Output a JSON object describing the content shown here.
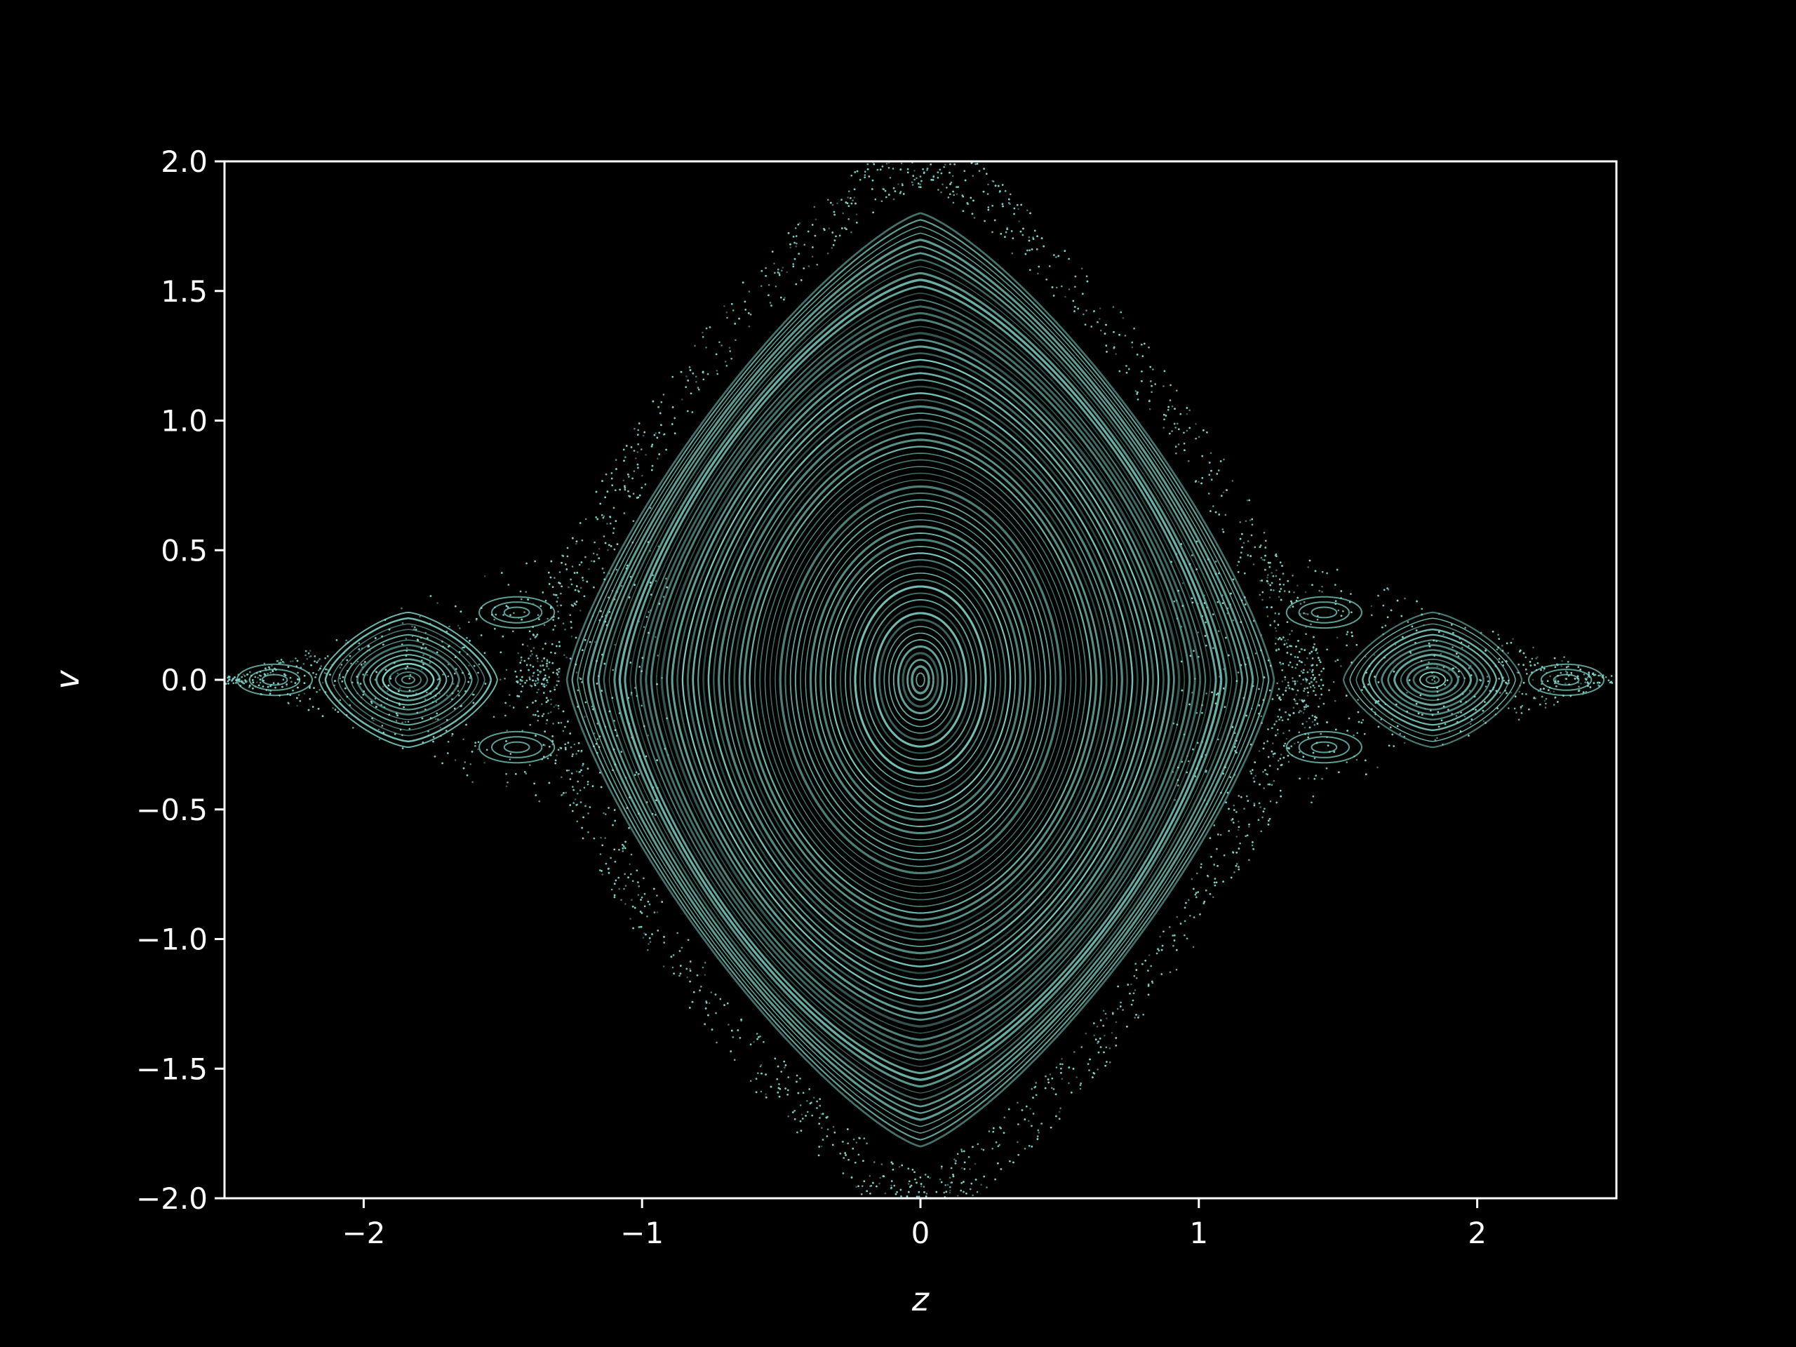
{
  "chart_data": {
    "type": "scatter",
    "title": "",
    "xlabel": "z",
    "ylabel": "v",
    "xlim": [
      -2.5,
      2.5
    ],
    "ylim": [
      -2.0,
      2.0
    ],
    "grid": false,
    "x_ticks": [
      -2,
      -1,
      0,
      1,
      2
    ],
    "y_ticks": [
      2.0,
      1.5,
      1.0,
      0.5,
      0.0,
      -0.5,
      -1.0,
      -1.5,
      -2.0
    ],
    "x_tick_labels": [
      "−2",
      "−1",
      "0",
      "1",
      "2"
    ],
    "y_tick_labels": [
      "2.0",
      "1.5",
      "1.0",
      "0.5",
      "0.0",
      "−0.5",
      "−1.0",
      "−1.5",
      "−2.0"
    ],
    "point_color": "#7fd3c7",
    "background_color": "#000000",
    "series": [
      {
        "description_values": {
          "central_island": {
            "center": [
              0,
              0
            ],
            "z_halfwidth": 1.27,
            "v_halfheight": 1.8
          },
          "left_island": {
            "center": [
              -1.84,
              0
            ],
            "z_halfwidth": 0.32,
            "v_halfheight": 0.2
          },
          "right_island": {
            "center": [
              1.84,
              0
            ],
            "z_halfwidth": 0.32,
            "v_halfheight": 0.2
          },
          "small_islands": [
            [
              -2.32,
              0
            ],
            [
              2.32,
              0
            ],
            [
              -1.45,
              0.26
            ],
            [
              -1.45,
              -0.26
            ],
            [
              1.45,
              0.26
            ],
            [
              1.45,
              -0.26
            ]
          ]
        }
      }
    ]
  }
}
